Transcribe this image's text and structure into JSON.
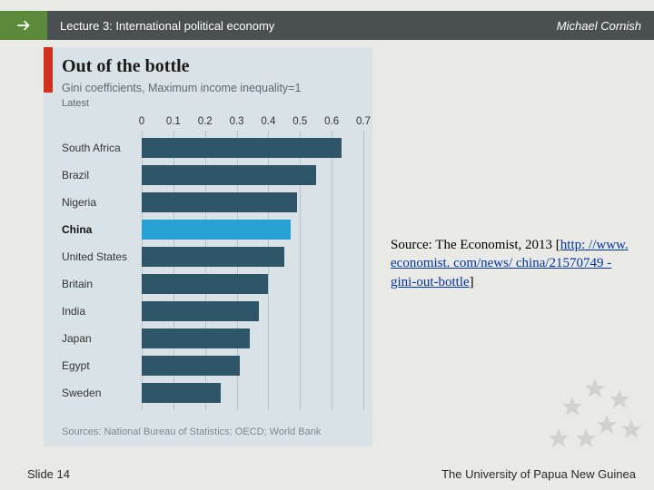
{
  "header": {
    "lecture": "Lecture 3:  International political economy",
    "author": "Michael Cornish"
  },
  "chart": {
    "type": "bar",
    "title": "Out of the bottle",
    "subtitle": "Gini coefficients, Maximum income inequality=1",
    "latest_label": "Latest",
    "xlim": [
      0,
      0.7
    ],
    "ticks": [
      0,
      0.1,
      0.2,
      0.3,
      0.4,
      0.5,
      0.6,
      0.7
    ],
    "tick_labels": [
      "0",
      "0.1",
      "0.2",
      "0.3",
      "0.4",
      "0.5",
      "0.6",
      "0.7"
    ],
    "default_bar_color": "#2f5668",
    "highlight_bar_color": "#27a0d4",
    "background_color": "#d9e3e7",
    "grid_color": "#b8c4ca",
    "accent_color": "#d1301f",
    "title_fontsize": 20,
    "label_fontsize": 12,
    "tick_fontsize": 11.5,
    "countries": [
      {
        "name": "South Africa",
        "value": 0.63,
        "highlight": false
      },
      {
        "name": "Brazil",
        "value": 0.55,
        "highlight": false
      },
      {
        "name": "Nigeria",
        "value": 0.49,
        "highlight": false
      },
      {
        "name": "China",
        "value": 0.47,
        "highlight": true
      },
      {
        "name": "United States",
        "value": 0.45,
        "highlight": false
      },
      {
        "name": "Britain",
        "value": 0.4,
        "highlight": false
      },
      {
        "name": "India",
        "value": 0.37,
        "highlight": false
      },
      {
        "name": "Japan",
        "value": 0.34,
        "highlight": false
      },
      {
        "name": "Egypt",
        "value": 0.31,
        "highlight": false
      },
      {
        "name": "Sweden",
        "value": 0.25,
        "highlight": false
      }
    ],
    "source_line": "Sources: National Bureau of Statistics; OECD; World Bank"
  },
  "citation": {
    "prefix": "Source:  The Economist, 2013 [",
    "link_text": "http: //www. economist. com/news/ china/21570749 -gini-out-bottle",
    "suffix": "]"
  },
  "footer": {
    "slide": "Slide 14",
    "org": "The University of Papua New Guinea"
  }
}
